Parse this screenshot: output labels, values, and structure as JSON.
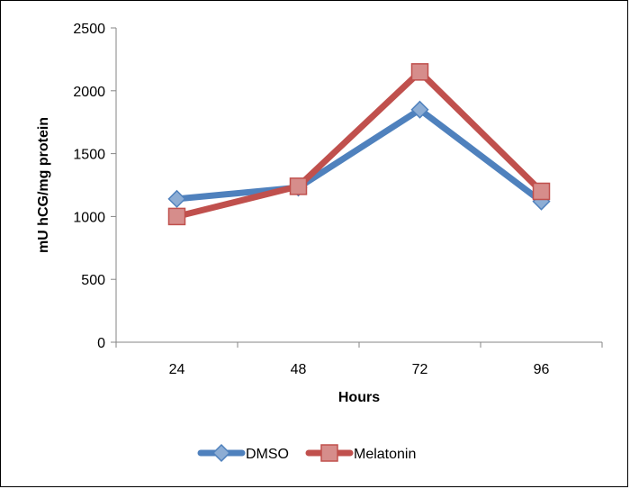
{
  "chart_data": {
    "type": "line",
    "categories": [
      "24",
      "48",
      "72",
      "96"
    ],
    "series": [
      {
        "name": "DMSO",
        "values": [
          1140,
          1230,
          1850,
          1120
        ],
        "color": "#4f81bd",
        "marker": "diamond"
      },
      {
        "name": "Melatonin",
        "values": [
          1000,
          1240,
          2150,
          1200
        ],
        "color": "#c0504d",
        "marker": "square"
      }
    ],
    "title": "",
    "xlabel": "Hours",
    "ylabel": "mU hCG/mg protein",
    "ylim": [
      0,
      2500
    ],
    "yticks": [
      0,
      500,
      1000,
      1500,
      2000,
      2500
    ],
    "grid": false,
    "legend_position": "bottom"
  }
}
